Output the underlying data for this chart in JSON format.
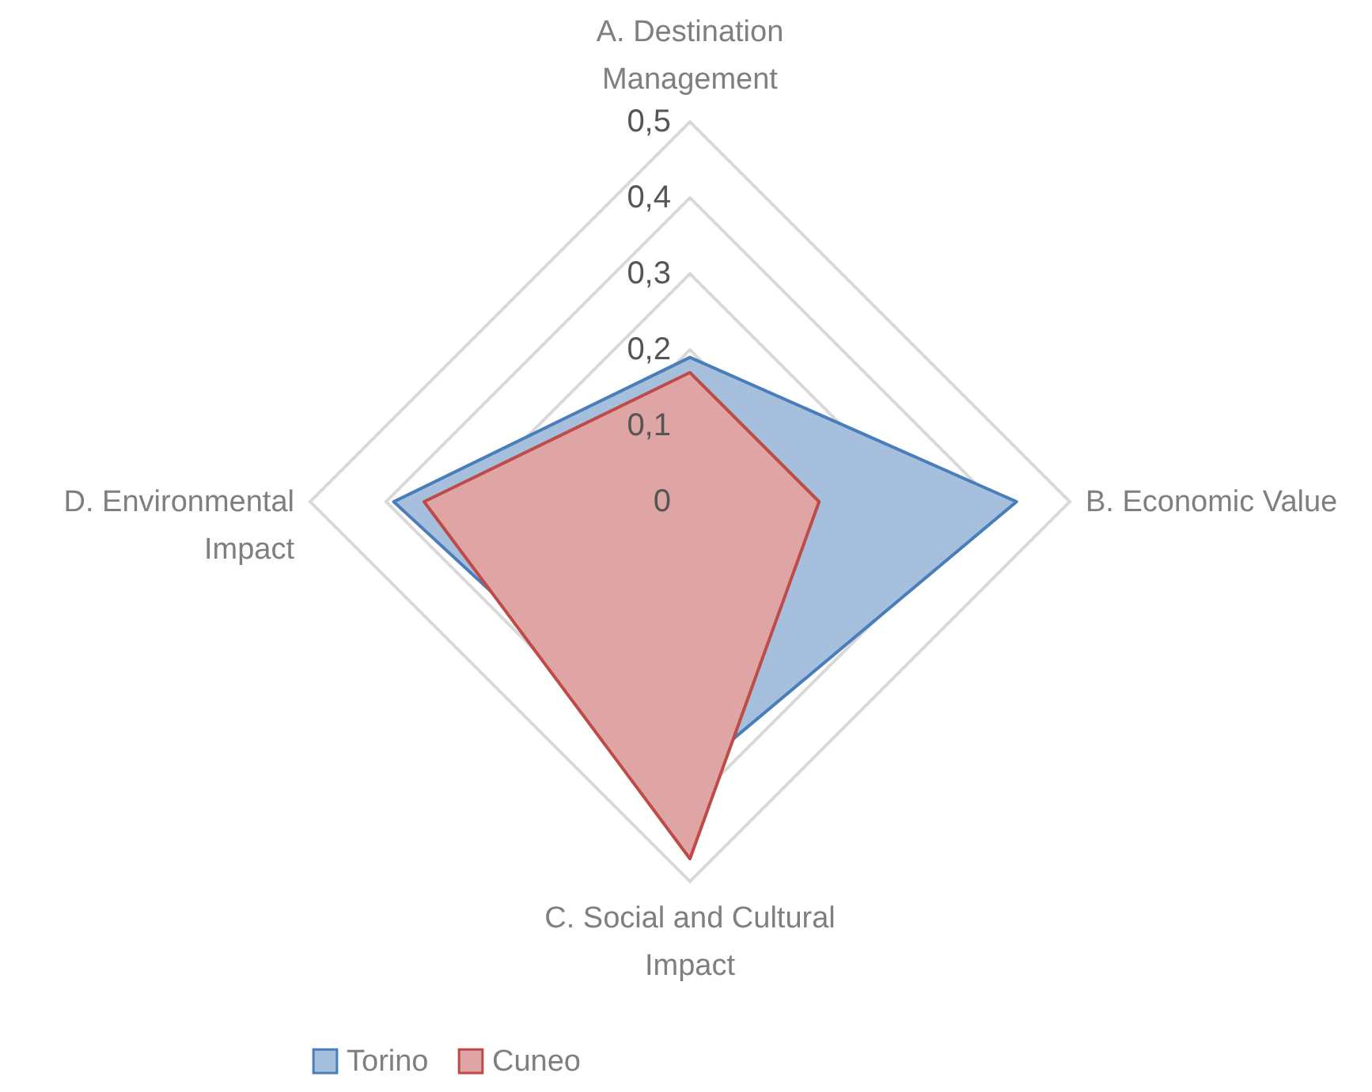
{
  "chart_data": {
    "type": "radar",
    "categories": [
      "A.  Destination Management",
      "B. Economic Value",
      "C.  Social and Cultural Impact",
      "D.  Environmental Impact"
    ],
    "series": [
      {
        "name": "Torino",
        "color": "#4a7ebb",
        "values": [
          0.19,
          0.43,
          0.36,
          0.39
        ]
      },
      {
        "name": "Cuneo",
        "color": "#be4b48",
        "values": [
          0.17,
          0.17,
          0.47,
          0.35
        ]
      }
    ],
    "ylim": [
      0,
      0.5
    ],
    "yticks": [
      {
        "value": 0,
        "label": "0"
      },
      {
        "value": 0.1,
        "label": "0,1"
      },
      {
        "value": 0.2,
        "label": "0,2"
      },
      {
        "value": 0.3,
        "label": "0,3"
      },
      {
        "value": 0.4,
        "label": "0,4"
      },
      {
        "value": 0.5,
        "label": "0,5"
      }
    ],
    "grid": true,
    "legend": "bottom"
  }
}
